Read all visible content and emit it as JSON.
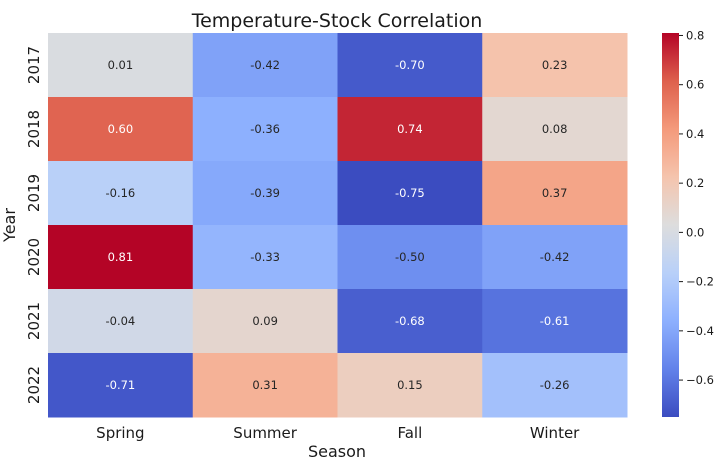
{
  "chart_data": {
    "type": "heatmap",
    "title": "Temperature-Stock Correlation",
    "xlabel": "Season",
    "ylabel": "Year",
    "x_categories": [
      "Spring",
      "Summer",
      "Fall",
      "Winter"
    ],
    "y_categories": [
      "2017",
      "2018",
      "2019",
      "2020",
      "2021",
      "2022"
    ],
    "values": [
      [
        0.01,
        -0.42,
        -0.7,
        0.23
      ],
      [
        0.6,
        -0.36,
        0.74,
        0.08
      ],
      [
        -0.16,
        -0.39,
        -0.75,
        0.37
      ],
      [
        0.81,
        -0.33,
        -0.5,
        -0.42
      ],
      [
        -0.04,
        0.09,
        -0.68,
        -0.61
      ],
      [
        -0.71,
        0.31,
        0.15,
        -0.26
      ]
    ],
    "value_labels": [
      [
        "0.01",
        "-0.42",
        "-0.70",
        "0.23"
      ],
      [
        "0.60",
        "-0.36",
        "0.74",
        "0.08"
      ],
      [
        "-0.16",
        "-0.39",
        "-0.75",
        "0.37"
      ],
      [
        "0.81",
        "-0.33",
        "-0.50",
        "-0.42"
      ],
      [
        "-0.04",
        "0.09",
        "-0.68",
        "-0.61"
      ],
      [
        "-0.71",
        "0.31",
        "0.15",
        "-0.26"
      ]
    ],
    "colormap": "coolwarm",
    "vmin": -0.75,
    "vmax": 0.81,
    "colorbar_ticks": [
      "0.8",
      "0.6",
      "0.4",
      "0.2",
      "0.0",
      "−0.2",
      "−0.4",
      "−0.6"
    ],
    "colorbar_tick_values": [
      0.8,
      0.6,
      0.4,
      0.2,
      0.0,
      -0.2,
      -0.4,
      -0.6
    ],
    "grid": false,
    "legend": "colorbar-right"
  }
}
